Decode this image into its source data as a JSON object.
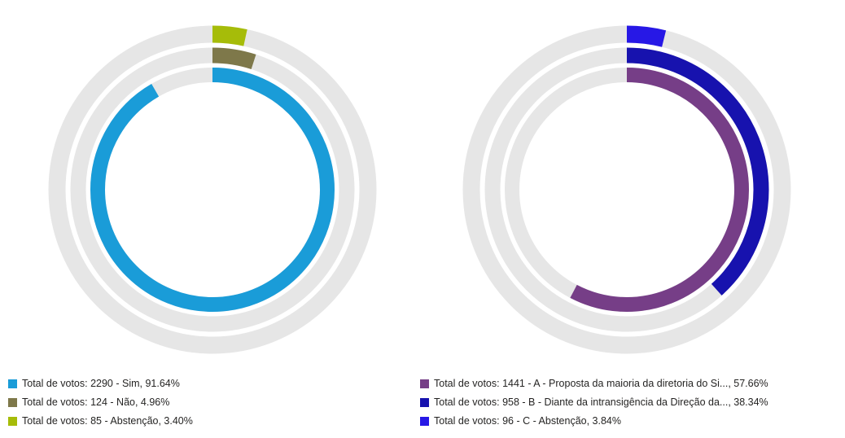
{
  "canvas": {
    "background": "#FFFFFF",
    "track_color": "#E6E6E6",
    "legend_text_color": "#252423"
  },
  "chart_data": [
    {
      "id": "left",
      "type": "donut",
      "subtype": "concentric-radial-rings",
      "start_angle": "12 o'clock",
      "direction": "clockwise",
      "legend_position": "bottom-left",
      "series": [
        {
          "name": "Sim",
          "votes": 2290,
          "pct": 91.64,
          "ring": "inner",
          "color": "#1A9CD8",
          "legend_label": "Total de votos: 2290 - Sim, 91.64%"
        },
        {
          "name": "Não",
          "votes": 124,
          "pct": 4.96,
          "ring": "middle",
          "color": "#7E784A",
          "legend_label": "Total de votos: 124 - Não, 4.96%"
        },
        {
          "name": "Abstenção",
          "votes": 85,
          "pct": 3.4,
          "ring": "outer",
          "color": "#A6BC09",
          "legend_label": "Total de votos: 85 - Abstenção, 3.40%"
        }
      ]
    },
    {
      "id": "right",
      "type": "donut",
      "subtype": "concentric-radial-rings",
      "start_angle": "12 o'clock",
      "direction": "clockwise",
      "legend_position": "bottom-left",
      "series": [
        {
          "name": "A - Proposta da maioria da diretoria do Si...",
          "votes": 1441,
          "pct": 57.66,
          "ring": "inner",
          "color": "#763E87",
          "legend_label": "Total de votos: 1441 - A - Proposta da maioria da diretoria do Si..., 57.66%"
        },
        {
          "name": "B - Diante da intransigência da Direção da...",
          "votes": 958,
          "pct": 38.34,
          "ring": "middle",
          "color": "#1712AE",
          "legend_label": "Total de votos: 958 - B - Diante da intransigência da Direção da..., 38.34%"
        },
        {
          "name": "C - Abstenção",
          "votes": 96,
          "pct": 3.84,
          "ring": "outer",
          "color": "#2718E6",
          "legend_label": "Total de votos: 96 - C - Abstenção, 3.84%"
        }
      ]
    }
  ]
}
